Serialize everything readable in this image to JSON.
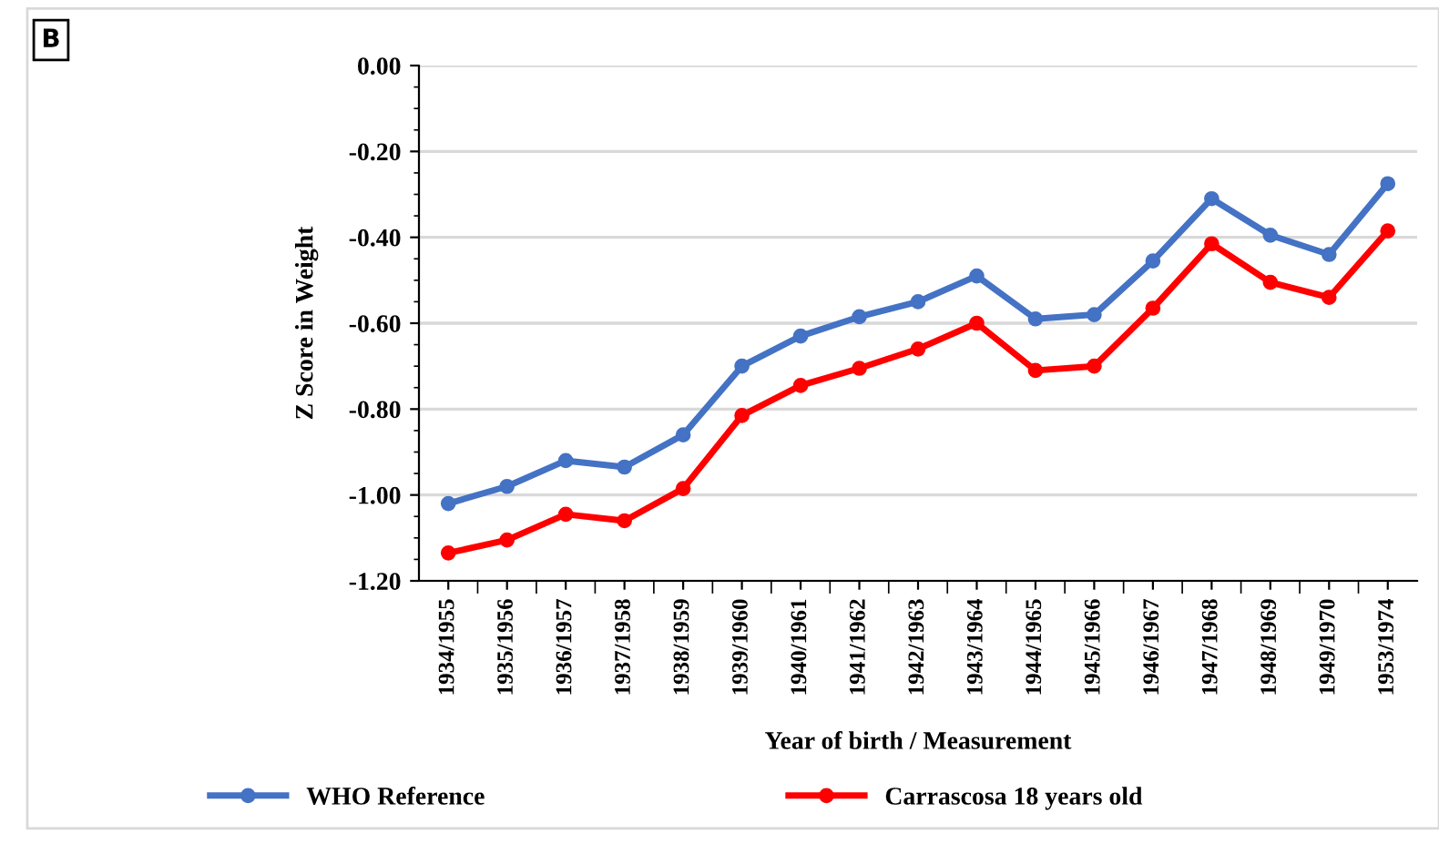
{
  "chart_data": {
    "type": "line",
    "xlabel": "Year of birth / Measurement",
    "ylabel": "Z Score in Weight",
    "annotations": [
      "B"
    ],
    "categories": [
      "1934/1955",
      "1935/1956",
      "1936/1957",
      "1937/1958",
      "1938/1959",
      "1939/1960",
      "1940/1961",
      "1941/1962",
      "1942/1963",
      "1943/1964",
      "1944/1965",
      "1945/1966",
      "1946/1967",
      "1947/1968",
      "1948/1969",
      "1949/1970",
      "1953/1974"
    ],
    "series": [
      {
        "name": "WHO Reference",
        "color": "#4472c4",
        "values": [
          -1.02,
          -0.98,
          -0.92,
          -0.935,
          -0.86,
          -0.7,
          -0.63,
          -0.585,
          -0.55,
          -0.49,
          -0.59,
          -0.58,
          -0.455,
          -0.31,
          -0.395,
          -0.44,
          -0.275
        ]
      },
      {
        "name": "Carrascosa 18 years old",
        "color": "#ff0000",
        "values": [
          -1.135,
          -1.105,
          -1.045,
          -1.06,
          -0.985,
          -0.815,
          -0.745,
          -0.705,
          -0.66,
          -0.6,
          -0.71,
          -0.7,
          -0.565,
          -0.415,
          -0.505,
          -0.54,
          -0.385
        ]
      }
    ],
    "ylim": [
      -1.2,
      0
    ],
    "yticks": [
      {
        "value": -1.2,
        "label": "-1.20"
      },
      {
        "value": -1.0,
        "label": "-1.00"
      },
      {
        "value": -0.8,
        "label": "-0.80"
      },
      {
        "value": -0.6,
        "label": "-0.60"
      },
      {
        "value": -0.4,
        "label": "-0.40"
      },
      {
        "value": -0.2,
        "label": "-0.20"
      },
      {
        "value": 0,
        "label": "0.00"
      }
    ],
    "grid": "y",
    "legend": "bottom",
    "marker": "circle",
    "line_style": "solid"
  }
}
